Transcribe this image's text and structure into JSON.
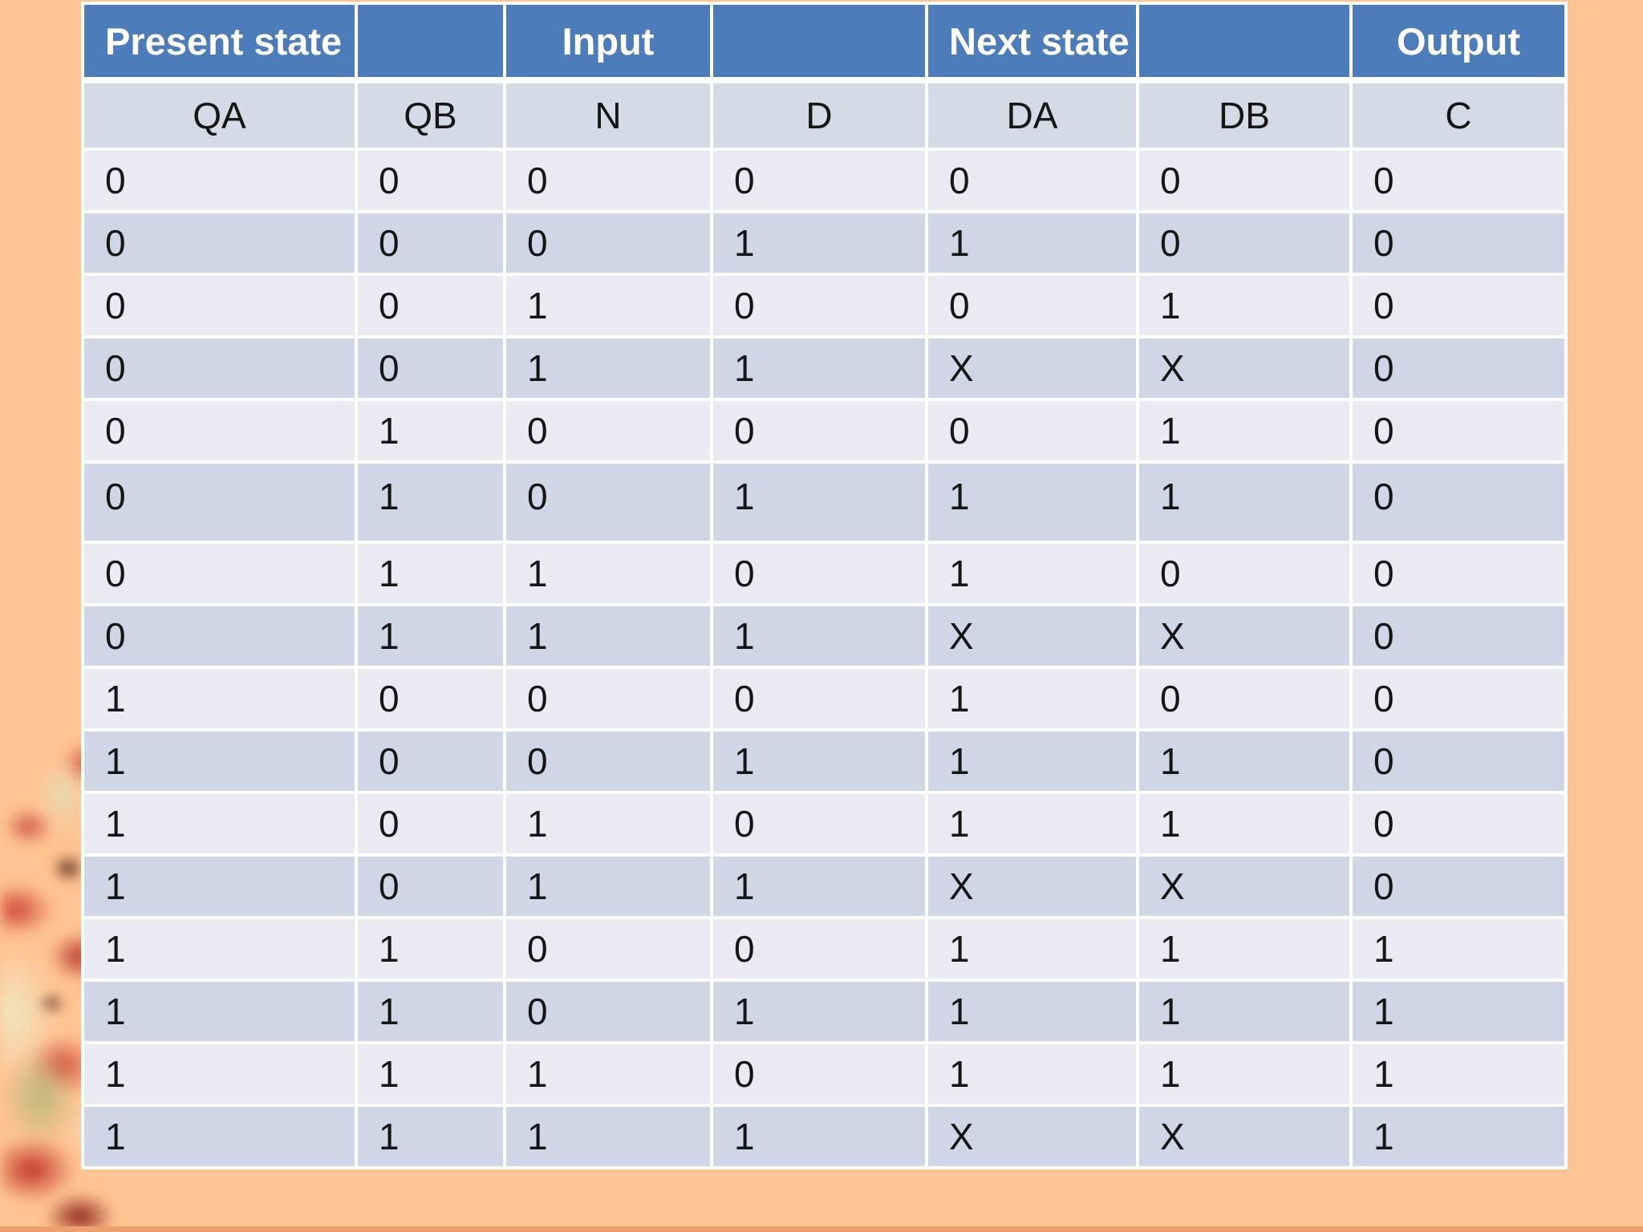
{
  "table": {
    "group_headers": [
      "Present state",
      "",
      "Input",
      "",
      "Next state",
      "",
      "Output"
    ],
    "column_headers": [
      "QA",
      "QB",
      "N",
      "D",
      "DA",
      "DB",
      "C"
    ],
    "rows": [
      [
        "0",
        "0",
        "0",
        "0",
        "0",
        "0",
        "0"
      ],
      [
        "0",
        "0",
        "0",
        "1",
        "1",
        "0",
        "0"
      ],
      [
        "0",
        "0",
        "1",
        "0",
        "0",
        "1",
        "0"
      ],
      [
        "0",
        "0",
        "1",
        "1",
        "X",
        "X",
        "0"
      ],
      [
        "0",
        "1",
        "0",
        "0",
        "0",
        "1",
        "0"
      ],
      [
        "0",
        "1",
        "0",
        "1",
        "1",
        "1",
        "0"
      ],
      [
        "0",
        "1",
        "1",
        "0",
        "1",
        "0",
        "0"
      ],
      [
        "0",
        "1",
        "1",
        "1",
        "X",
        "X",
        "0"
      ],
      [
        "1",
        "0",
        "0",
        "0",
        "1",
        "0",
        "0"
      ],
      [
        "1",
        "0",
        "0",
        "1",
        "1",
        "1",
        "0"
      ],
      [
        "1",
        "0",
        "1",
        "0",
        "1",
        "1",
        "0"
      ],
      [
        "1",
        "0",
        "1",
        "1",
        "X",
        "X",
        "0"
      ],
      [
        "1",
        "1",
        "0",
        "0",
        "1",
        "1",
        "1"
      ],
      [
        "1",
        "1",
        "0",
        "1",
        "1",
        "1",
        "1"
      ],
      [
        "1",
        "1",
        "1",
        "0",
        "1",
        "1",
        "1"
      ],
      [
        "1",
        "1",
        "1",
        "1",
        "X",
        "X",
        "1"
      ]
    ]
  },
  "colors": {
    "header-blue": "#4C7DBA",
    "header-text": "#FFFFFF",
    "subheader-bg": "#D4DAE6",
    "row-light": "#E9EAF2",
    "row-dark": "#CFD6E5",
    "slide-bg": "#FFC493",
    "bottom-strip": "#EF9F6D",
    "grid": "#FFFFFF",
    "text": "#151515"
  }
}
